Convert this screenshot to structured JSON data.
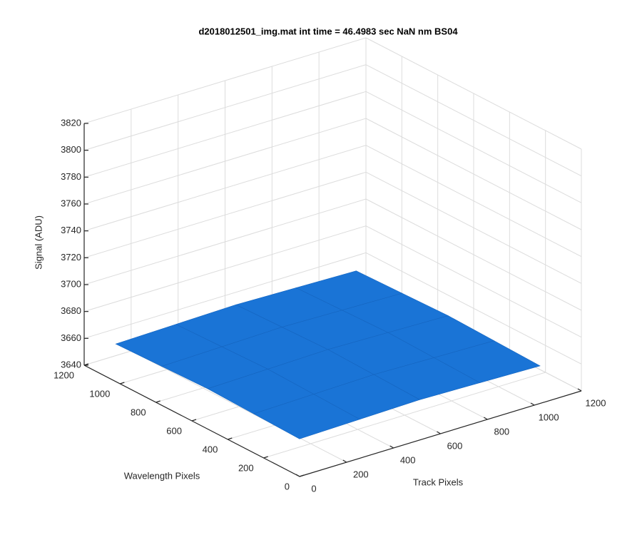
{
  "chart_data": {
    "type": "surface3d",
    "title": "d2018012501_img.mat int time = 46.4983 sec  NaN nm BS04",
    "x_label": "Track Pixels",
    "y_label": "Wavelength Pixels",
    "z_label": "Signal (ADU)",
    "color": "#1a74d6",
    "grid": true,
    "xlim": [
      0,
      1200
    ],
    "xticks": [
      0,
      200,
      400,
      600,
      800,
      1000,
      1200
    ],
    "ylim": [
      0,
      1200
    ],
    "yticks": [
      0,
      200,
      400,
      600,
      800,
      1000,
      1200
    ],
    "zlim": [
      3640,
      3820
    ],
    "zticks": [
      3640,
      3660,
      3680,
      3700,
      3720,
      3740,
      3760,
      3780,
      3800,
      3820
    ],
    "x": [
      0,
      256,
      512,
      768,
      1024
    ],
    "y": [
      0,
      256,
      512,
      768,
      1024
    ],
    "z": [
      [
        3668,
        3669,
        3670,
        3669,
        3668
      ],
      [
        3669,
        3670,
        3671,
        3670,
        3669
      ],
      [
        3670,
        3671,
        3672,
        3671,
        3670
      ],
      [
        3669,
        3670,
        3671,
        3670,
        3669
      ],
      [
        3668,
        3669,
        3670,
        3669,
        3668
      ]
    ]
  }
}
